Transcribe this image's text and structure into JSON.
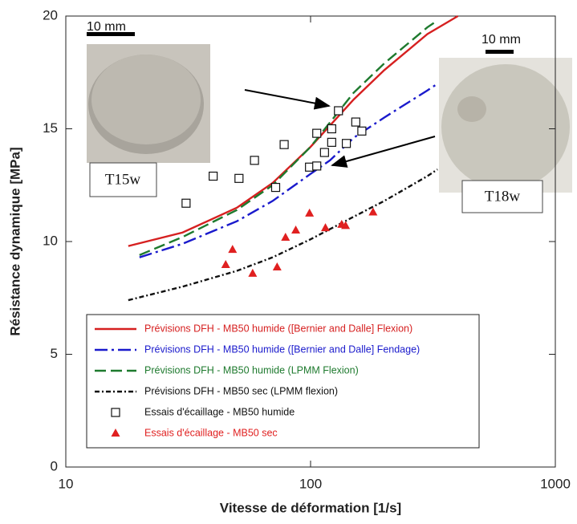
{
  "chart_data": {
    "type": "scatter",
    "xlabel": "Vitesse de déformation [1/s]",
    "ylabel": "Résistance dynamique [MPa]",
    "xscale": "log",
    "xlim": [
      10,
      1000
    ],
    "xticks": [
      10,
      100,
      1000
    ],
    "ylim": [
      0,
      20
    ],
    "yticks": [
      0,
      5,
      10,
      15,
      20
    ],
    "legend": "lower left",
    "sample_labels": [
      "T15w",
      "T18w"
    ],
    "scale_labels": [
      "10 mm",
      "10 mm"
    ],
    "series": [
      {
        "name": "Prévisions DFH - MB50 humide ([Bernier and Dalle] Flexion)",
        "color": "#d62020",
        "style": "line",
        "dash": "none",
        "x": [
          18,
          30,
          50,
          70,
          100,
          150,
          200,
          300,
          400
        ],
        "values": [
          9.8,
          10.4,
          11.5,
          12.6,
          14.2,
          16.3,
          17.6,
          19.2,
          20
        ]
      },
      {
        "name": "Prévisions DFH - MB50 humide ([Bernier and Dalle] Fendage)",
        "color": "#1a1acc",
        "style": "line",
        "dash": "16 5 3 5",
        "x": [
          20,
          30,
          50,
          70,
          100,
          120,
          150,
          200,
          300,
          330
        ],
        "values": [
          9.3,
          9.9,
          10.9,
          11.8,
          13.0,
          13.6,
          14.6,
          15.5,
          16.7,
          17.0
        ]
      },
      {
        "name": "Prévisions DFH - MB50 humide (LPMM Flexion)",
        "color": "#1e7a2e",
        "style": "line",
        "dash": "14 6",
        "x": [
          20,
          30,
          50,
          70,
          100,
          150,
          200,
          300,
          330
        ],
        "values": [
          9.4,
          10.2,
          11.4,
          12.5,
          14.2,
          16.6,
          17.9,
          19.5,
          19.8
        ]
      },
      {
        "name": "Prévisions DFH - MB50 sec (LPMM flexion)",
        "color": "#111111",
        "style": "line",
        "dash": "6 3 2 3",
        "x": [
          18,
          30,
          50,
          70,
          100,
          150,
          200,
          300,
          330
        ],
        "values": [
          7.4,
          8.0,
          8.7,
          9.3,
          10.1,
          11.1,
          11.8,
          12.9,
          13.2
        ]
      },
      {
        "name": "Essais d'écaillage - MB50 humide",
        "color": "#111111",
        "style": "square",
        "x": [
          31,
          40,
          51,
          59,
          72,
          78,
          99,
          106,
          106,
          114,
          122,
          122,
          130,
          140,
          153,
          162
        ],
        "values": [
          11.7,
          12.9,
          12.8,
          13.6,
          12.4,
          14.3,
          13.3,
          13.35,
          14.8,
          13.95,
          15.0,
          14.4,
          15.8,
          14.35,
          15.3,
          14.9
        ]
      },
      {
        "name": "Essais d'écaillage - MB50 sec",
        "color": "#e02020",
        "style": "triangle",
        "x": [
          45,
          48,
          58,
          73,
          79,
          87,
          99,
          115,
          134,
          139,
          180
        ],
        "values": [
          8.97,
          9.64,
          8.58,
          8.86,
          10.18,
          10.5,
          11.25,
          10.6,
          10.75,
          10.7,
          11.3
        ]
      }
    ]
  }
}
